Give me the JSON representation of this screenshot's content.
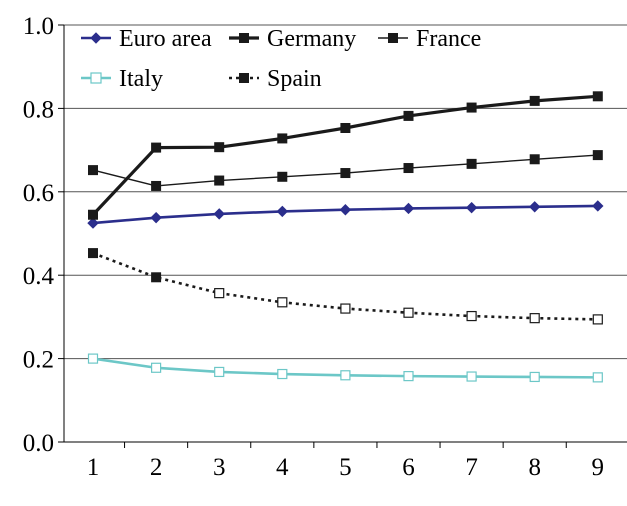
{
  "chart_data": {
    "type": "line",
    "x": [
      1,
      2,
      3,
      4,
      5,
      6,
      7,
      8,
      9
    ],
    "ylim": [
      0.0,
      1.0
    ],
    "yticks": [
      "0.0",
      "0.2",
      "0.4",
      "0.6",
      "0.8",
      "1.0"
    ],
    "xticks": [
      "1",
      "2",
      "3",
      "4",
      "5",
      "6",
      "7",
      "8",
      "9"
    ],
    "grid": "horizontal",
    "legend_position": "top",
    "series": [
      {
        "name": "Euro area",
        "color": "#2b2e8c",
        "marker": "diamond",
        "line": "solid",
        "values": [
          0.525,
          0.538,
          0.547,
          0.553,
          0.557,
          0.56,
          0.562,
          0.564,
          0.566
        ]
      },
      {
        "name": "Germany",
        "color": "#1a1a1a",
        "marker": "square",
        "line": "solid-thick",
        "values": [
          0.545,
          0.706,
          0.707,
          0.728,
          0.753,
          0.782,
          0.802,
          0.818,
          0.829
        ]
      },
      {
        "name": "France",
        "color": "#1a1a1a",
        "marker": "square",
        "line": "solid-thin",
        "values": [
          0.652,
          0.614,
          0.627,
          0.636,
          0.645,
          0.657,
          0.667,
          0.678,
          0.688
        ]
      },
      {
        "name": "Italy",
        "color": "#6cc7c7",
        "marker": "square-open",
        "line": "solid",
        "values": [
          0.2,
          0.178,
          0.168,
          0.163,
          0.16,
          0.158,
          0.157,
          0.156,
          0.155
        ]
      },
      {
        "name": "Spain",
        "color": "#1a1a1a",
        "marker": "square-open",
        "line": "dotted",
        "values": [
          0.453,
          0.395,
          0.357,
          0.335,
          0.32,
          0.31,
          0.302,
          0.297,
          0.294
        ]
      }
    ]
  }
}
